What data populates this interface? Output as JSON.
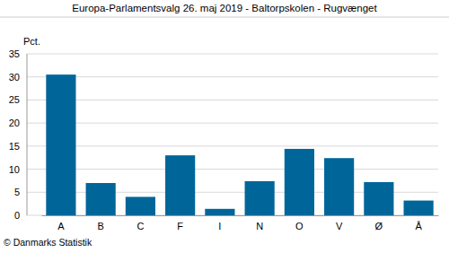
{
  "chart_data": {
    "type": "bar",
    "title": "Europa-Parlamentsvalg 26. maj 2019 - Baltorpskolen - Rugvænget",
    "y_label": "Pct.",
    "categories": [
      "A",
      "B",
      "C",
      "F",
      "I",
      "N",
      "O",
      "V",
      "Ø",
      "Å"
    ],
    "values": [
      30.5,
      7.0,
      4.0,
      13.0,
      1.4,
      7.4,
      14.4,
      12.4,
      7.2,
      3.2
    ],
    "color": "#00669a",
    "ylim": [
      0,
      35
    ],
    "yticks": [
      0,
      5,
      10,
      15,
      20,
      25,
      30,
      35
    ],
    "grid": true,
    "annotations": [
      "© Danmarks Statistik"
    ]
  }
}
